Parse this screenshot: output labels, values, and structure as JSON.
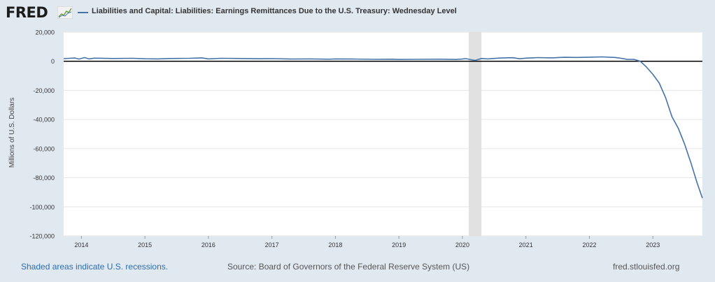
{
  "header": {
    "logo_text": "FRED",
    "logo_icon": "fred-chart-icon",
    "series_title": "Liabilities and Capital: Liabilities: Earnings Remittances Due to the U.S. Treasury: Wednesday Level"
  },
  "footer": {
    "recession_note": "Shaded areas indicate U.S. recessions.",
    "source": "Source: Board of Governors of the Federal Reserve System (US)",
    "site": "fred.stlouisfed.org"
  },
  "colors": {
    "line": "#4572a7",
    "page_background": "#e1e9f0",
    "plot_background": "#ffffff",
    "recession_shading": "#e1e1e1",
    "grid": "#e6e6e6",
    "zero_line": "#000000"
  },
  "chart_data": {
    "type": "line",
    "title": "",
    "xlabel": "",
    "ylabel": "Millions of U.S. Dollars",
    "xlim": [
      2013.72,
      2023.78
    ],
    "ylim": [
      -120000,
      20000
    ],
    "x_ticks": [
      "2014",
      "2015",
      "2016",
      "2017",
      "2018",
      "2019",
      "2020",
      "2021",
      "2022",
      "2023"
    ],
    "y_ticks": [
      20000,
      0,
      -20000,
      -40000,
      -60000,
      -80000,
      -100000,
      -120000
    ],
    "y_tick_labels": [
      "20,000",
      "0",
      "-20,000",
      "-40,000",
      "-60,000",
      "-80,000",
      "-100,000",
      "-120,000"
    ],
    "grid": "horizontal",
    "zero_line": true,
    "recessions": [
      [
        2020.1,
        2020.3
      ]
    ],
    "series": [
      {
        "color": "#4572a7",
        "x": [
          2013.72,
          2013.9,
          2013.96,
          2014.05,
          2014.12,
          2014.2,
          2014.5,
          2014.8,
          2015.0,
          2015.2,
          2015.4,
          2015.7,
          2015.9,
          2016.0,
          2016.2,
          2016.5,
          2016.8,
          2017.0,
          2017.3,
          2017.6,
          2017.9,
          2018.0,
          2018.3,
          2018.6,
          2018.9,
          2019.0,
          2019.3,
          2019.6,
          2019.9,
          2020.0,
          2020.05,
          2020.2,
          2020.3,
          2020.4,
          2020.6,
          2020.8,
          2020.9,
          2021.0,
          2021.2,
          2021.4,
          2021.6,
          2021.8,
          2022.0,
          2022.2,
          2022.4,
          2022.5,
          2022.6,
          2022.7,
          2022.8,
          2022.9,
          2023.0,
          2023.1,
          2023.2,
          2023.3,
          2023.4,
          2023.5,
          2023.6,
          2023.7,
          2023.78
        ],
        "y": [
          1800,
          2200,
          1500,
          2500,
          1600,
          2100,
          1900,
          2000,
          1700,
          1600,
          1900,
          2000,
          2300,
          1600,
          2000,
          1900,
          1700,
          1800,
          1500,
          1600,
          1400,
          1600,
          1500,
          1300,
          1400,
          1200,
          1300,
          1400,
          1200,
          1500,
          1800,
          600,
          1900,
          1600,
          2200,
          2400,
          1700,
          2100,
          2500,
          2300,
          2700,
          2600,
          2800,
          3000,
          2600,
          2000,
          1200,
          1300,
          0,
          -4000,
          -9000,
          -15000,
          -25000,
          -38000,
          -46000,
          -57000,
          -70000,
          -84000,
          -94000
        ]
      }
    ]
  }
}
